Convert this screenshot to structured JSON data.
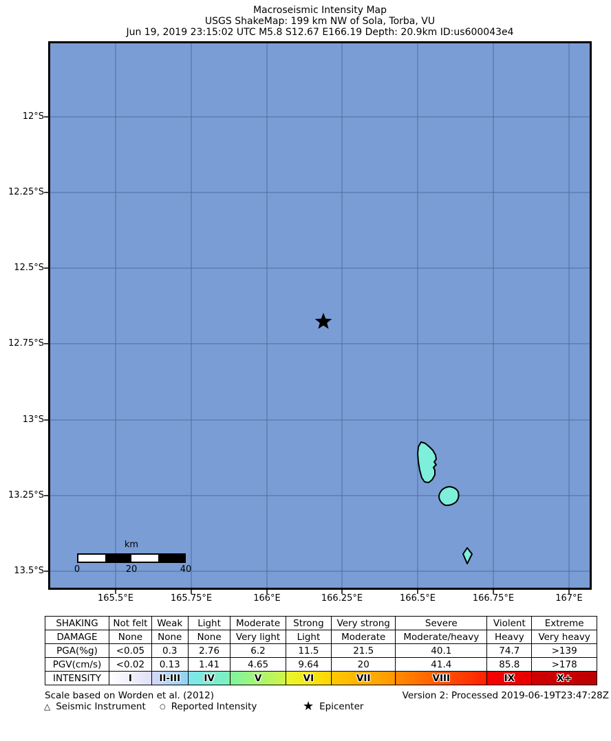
{
  "title": {
    "line1": "Macroseismic Intensity Map",
    "line2": "USGS ShakeMap: 199 km NW of Sola, Torba, VU",
    "line3": "Jun 19, 2019 23:15:02 UTC M5.8 S12.67 E166.19 Depth: 20.9km ID:us600043e4"
  },
  "map": {
    "x_ticks": [
      "165.5°E",
      "165.75°E",
      "166°E",
      "166.25°E",
      "166.5°E",
      "166.75°E",
      "167°E"
    ],
    "y_ticks": [
      "12°S",
      "12.25°S",
      "12.5°S",
      "12.75°S",
      "13°S",
      "13.25°S",
      "13.5°S"
    ],
    "epicenter": {
      "lon": 166.19,
      "lat": -12.67,
      "magnitude": "M5.8",
      "depth_km": 20.9
    },
    "scalebar": {
      "unit": "km",
      "tick0": "0",
      "tick1": "20",
      "tick2": "40"
    }
  },
  "colors": {
    "ocean": "#7B9DD5",
    "grid": "#4E6D9F",
    "island_fill": "#7DEFDB",
    "island_stroke": "#000000",
    "star": "#000000"
  },
  "table": {
    "rows": [
      {
        "name": "shaking",
        "cells": [
          "SHAKING",
          "Not felt",
          "Weak",
          "Light",
          "Moderate",
          "Strong",
          "Very strong",
          "Severe",
          "Violent",
          "Extreme"
        ]
      },
      {
        "name": "damage",
        "cells": [
          "DAMAGE",
          "None",
          "None",
          "None",
          "Very light",
          "Light",
          "Moderate",
          "Moderate/heavy",
          "Heavy",
          "Very heavy"
        ]
      },
      {
        "name": "pga",
        "cells": [
          "PGA(%g)",
          "<0.05",
          "0.3",
          "2.76",
          "6.2",
          "11.5",
          "21.5",
          "40.1",
          "74.7",
          ">139"
        ]
      },
      {
        "name": "pgv",
        "cells": [
          "PGV(cm/s)",
          "<0.02",
          "0.13",
          "1.41",
          "4.65",
          "9.64",
          "20",
          "41.4",
          "85.8",
          ">178"
        ]
      },
      {
        "name": "intensity",
        "cells": [
          "INTENSITY",
          "I",
          "II-III",
          "IV",
          "V",
          "VI",
          "VII",
          "VIII",
          "IX",
          "X+"
        ]
      }
    ],
    "intensity_cell_colors": [
      [
        "#FFFFFF",
        "#FFFFFF"
      ],
      [
        "#FFFFFF",
        "#E0E0F8"
      ],
      [
        "#D8D8F8",
        "#8FD2F0"
      ],
      [
        "#7EE6EC",
        "#7CF0C0"
      ],
      [
        "#7EF5A0",
        "#D0F545"
      ],
      [
        "#E8F830",
        "#FFD500"
      ],
      [
        "#FFC800",
        "#FF9800"
      ],
      [
        "#FF8C00",
        "#FF2000"
      ],
      [
        "#F80000",
        "#E80000"
      ],
      [
        "#D00000",
        "#BE0000"
      ]
    ]
  },
  "footer": {
    "scale_note": "Scale based on Worden et al. (2012)",
    "version": "Version 2: Processed 2019-06-19T23:47:28Z",
    "legend": [
      {
        "symbol": "△",
        "label": "Seismic Instrument"
      },
      {
        "symbol": "○",
        "label": "Reported Intensity"
      },
      {
        "symbol": "★",
        "label": "Epicenter"
      }
    ]
  }
}
